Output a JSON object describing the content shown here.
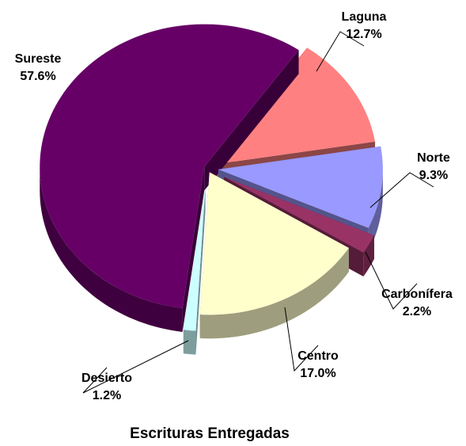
{
  "chart_data": {
    "type": "pie",
    "title": "Escrituras Entregadas",
    "categories": [
      "Laguna",
      "Norte",
      "Carbonífera",
      "Centro",
      "Desierto",
      "Sureste"
    ],
    "values": [
      12.7,
      9.3,
      2.2,
      17.0,
      1.2,
      57.6
    ],
    "value_labels": [
      "12.7%",
      "9.3%",
      "2.2%",
      "17.0%",
      "1.2%",
      "57.6%"
    ],
    "colors": [
      "#FF8080",
      "#9999FF",
      "#993366",
      "#FFFFCC",
      "#CCFFFF",
      "#660066"
    ]
  }
}
